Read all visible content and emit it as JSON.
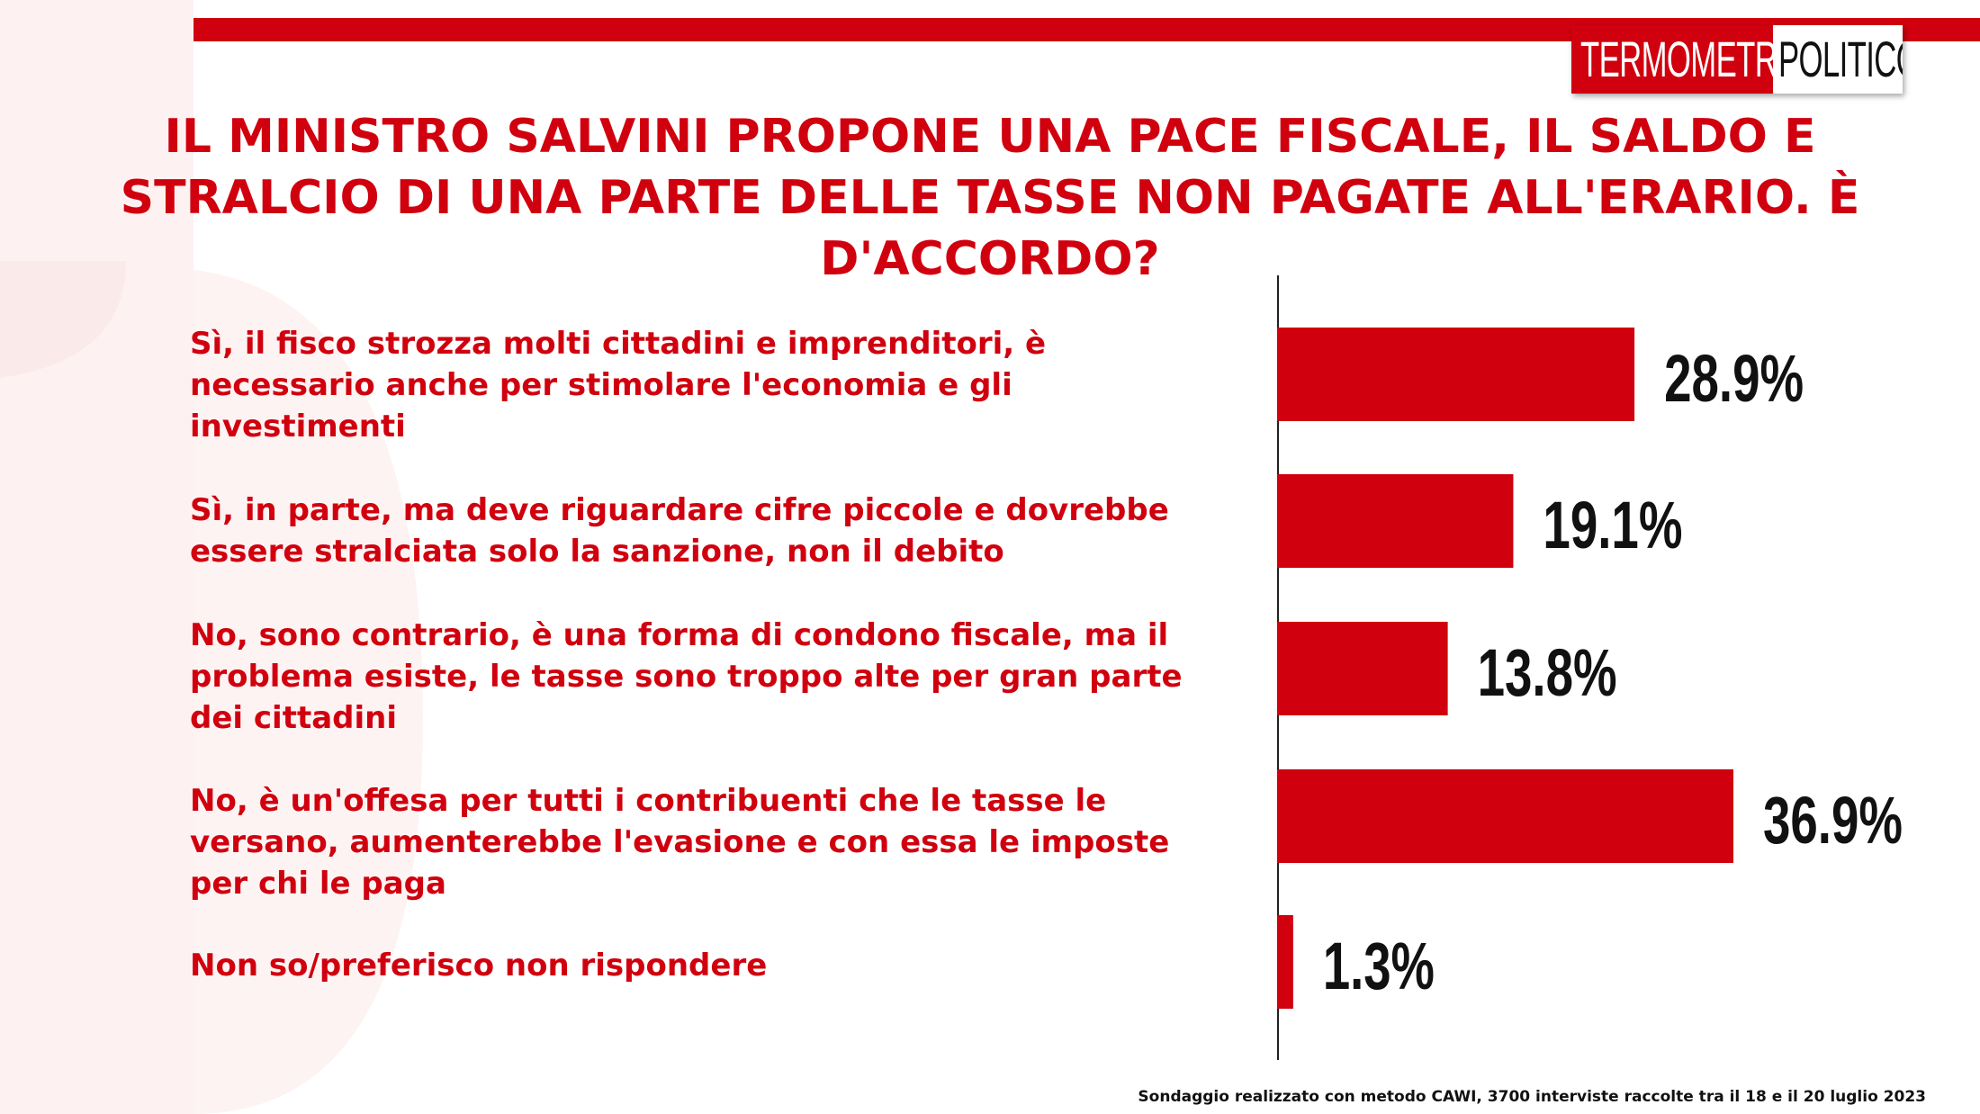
{
  "brand": {
    "logo_part1": "TERMOMETRO",
    "logo_part2": "POLITICO",
    "accent_color": "#d0000e"
  },
  "title": "IL MINISTRO SALVINI PROPONE UNA PACE FISCALE, IL SALDO E STRALCIO DI UNA PARTE DELLE TASSE NON PAGATE ALL'ERARIO. È D'ACCORDO?",
  "footnote": "Sondaggio realizzato con metodo CAWI, 3700 interviste raccolte tra il 18 e il 20 luglio 2023",
  "chart_data": {
    "type": "bar",
    "orientation": "horizontal",
    "title": "IL MINISTRO SALVINI PROPONE UNA PACE FISCALE, IL SALDO E STRALCIO DI UNA PARTE DELLE TASSE NON PAGATE ALL'ERARIO. È D'ACCORDO?",
    "categories": [
      "Sì, il fisco strozza molti cittadini e imprenditori, è necessario anche per stimolare l'economia e gli investimenti",
      "Sì, in parte, ma deve riguardare cifre piccole e dovrebbe essere stralciata solo la sanzione, non il debito",
      "No, sono contrario, è una forma di condono fiscale, ma il problema esiste, le tasse sono troppo alte per gran parte dei cittadini",
      "No, è un'offesa per tutti i contribuenti che le tasse le versano, aumenterebbe l'evasione e con essa le imposte per chi le paga",
      "Non so/preferisco non rispondere"
    ],
    "values": [
      28.9,
      19.1,
      13.8,
      36.9,
      1.3
    ],
    "value_labels": [
      "28.9%",
      "19.1%",
      "13.8%",
      "36.9%",
      "1.3%"
    ],
    "unit": "%",
    "bar_color": "#d0000e",
    "xlabel": "",
    "ylabel": "",
    "xlim": [
      0,
      40
    ],
    "grid": false,
    "legend": "none"
  }
}
